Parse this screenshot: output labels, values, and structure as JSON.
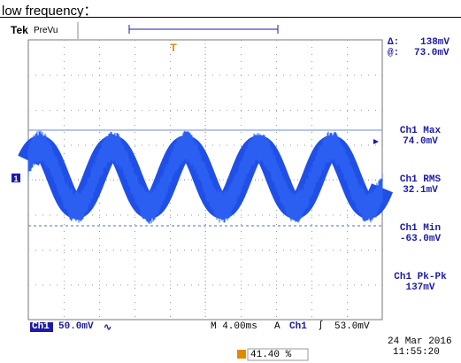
{
  "caption": "low frequency：",
  "header": {
    "brand": "Tek",
    "mode": "PreVu"
  },
  "cursor": {
    "delta_label": "Δ:",
    "delta": "138mV",
    "at_label": "@:",
    "at": "73.0mV"
  },
  "measurements": [
    {
      "label": "Ch1 Max",
      "value": "74.0mV"
    },
    {
      "label": "Ch1 RMS",
      "value": "32.1mV"
    },
    {
      "label": "Ch1 Min",
      "value": "-63.0mV"
    },
    {
      "label": "Ch1 Pk-Pk",
      "value": "137mV"
    }
  ],
  "markers": {
    "channel": "1",
    "trigger": "T"
  },
  "footer": {
    "channel": "Ch1",
    "scale": "50.0mV",
    "coupling": "∿",
    "timebase": "M 4.00ms",
    "trigger_mode": "A",
    "trigger_source": "Ch1",
    "trigger_slope": "∫",
    "trigger_level": "53.0mV",
    "date": "24 Mar 2016",
    "time": "11:55:20",
    "position": "41.40 %"
  }
}
